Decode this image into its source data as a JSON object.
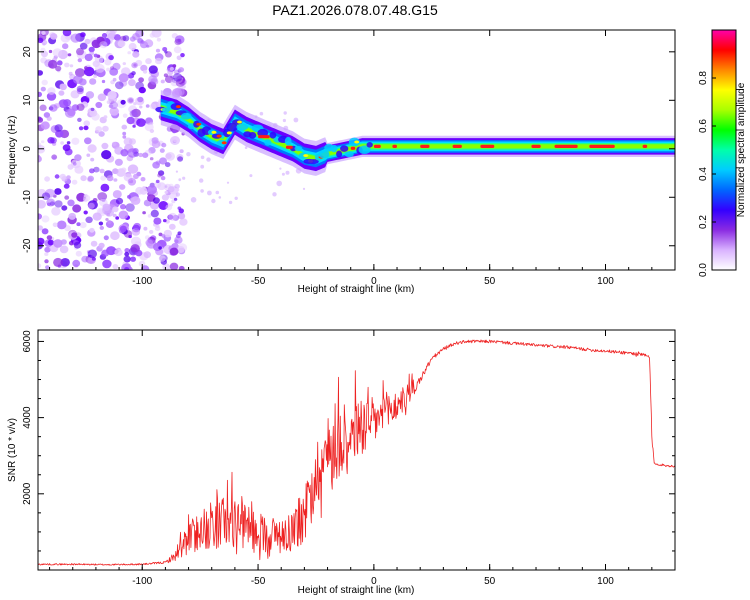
{
  "title": "PAZ1.2026.078.07.48.G15",
  "chart_data": [
    {
      "type": "heatmap",
      "title": "PAZ1.2026.078.07.48.G15",
      "xlabel": "Height of straight line (km)",
      "ylabel": "Frequency (Hz)",
      "xlim": [
        -145,
        130
      ],
      "ylim": [
        -25,
        24.5
      ],
      "xticks": [
        -100,
        -50,
        0,
        50,
        100
      ],
      "yticks": [
        -20,
        -10,
        0,
        10,
        20
      ],
      "xtick_labels": [
        "-100",
        "-50",
        "0",
        "50",
        "100"
      ],
      "ytick_labels": [
        "-20",
        "-10",
        "0",
        "10",
        "20"
      ],
      "noise_region_x": [
        -145,
        -88
      ],
      "ridge": {
        "x": [
          -92,
          -85,
          -80,
          -75,
          -70,
          -65,
          -60,
          -55,
          -50,
          -45,
          -40,
          -35,
          -30,
          -25,
          -20,
          -15,
          -10,
          -5,
          0,
          10,
          20,
          30,
          50,
          60,
          70,
          80,
          90,
          100,
          110,
          120,
          130
        ],
        "freq": [
          8.5,
          7.5,
          6,
          4,
          2.5,
          1.5,
          5.5,
          4,
          3,
          2,
          1,
          0,
          -1.5,
          -2,
          -1,
          -0.5,
          0,
          0.5,
          0.5,
          0.5,
          0.5,
          0.5,
          0.5,
          0.5,
          0.5,
          0.5,
          0.5,
          0.5,
          0.5,
          0.5,
          0.5
        ]
      },
      "colorbar": {
        "label": "Normalized spectral amplitude",
        "range": [
          0,
          1
        ],
        "ticks": [
          0.0,
          0.2,
          0.4,
          0.6,
          0.8
        ],
        "tick_labels": [
          "0.0",
          "0.2",
          "0.4",
          "0.6",
          "0.8"
        ],
        "colors": [
          "#ffffff",
          "#d9b3ff",
          "#8a2be2",
          "#3300ff",
          "#0066ff",
          "#00ccff",
          "#00ffaa",
          "#00ff00",
          "#aaff00",
          "#ffff00",
          "#ff8800",
          "#ff0000",
          "#ff00aa"
        ]
      }
    },
    {
      "type": "line",
      "xlabel": "Height of straight line (km)",
      "ylabel": "SNR (10 * v/v)",
      "xlim": [
        -145,
        130
      ],
      "ylim": [
        0,
        6300
      ],
      "xticks": [
        -100,
        -50,
        0,
        50,
        100
      ],
      "yticks": [
        2000,
        4000,
        6000
      ],
      "xtick_labels": [
        "-100",
        "-50",
        "0",
        "50",
        "100"
      ],
      "ytick_labels": [
        "2000",
        "4000",
        "6000"
      ],
      "color": "#ee2222",
      "series": [
        {
          "name": "SNR",
          "x": [
            -145,
            -130,
            -115,
            -100,
            -90,
            -85,
            -80,
            -75,
            -70,
            -65,
            -60,
            -55,
            -50,
            -45,
            -40,
            -35,
            -30,
            -25,
            -20,
            -15,
            -10,
            -5,
            0,
            5,
            10,
            15,
            20,
            25,
            30,
            35,
            40,
            45,
            50,
            55,
            60,
            65,
            70,
            75,
            80,
            85,
            90,
            95,
            100,
            105,
            110,
            115,
            119,
            120,
            121,
            125,
            130
          ],
          "base": [
            150,
            150,
            140,
            150,
            200,
            400,
            700,
            900,
            1000,
            1050,
            1050,
            950,
            850,
            800,
            800,
            900,
            1200,
            2200,
            2800,
            3100,
            3300,
            3500,
            3700,
            3950,
            4200,
            4500,
            5000,
            5550,
            5800,
            5950,
            6000,
            6000,
            6000,
            5980,
            5950,
            5930,
            5900,
            5880,
            5860,
            5840,
            5800,
            5770,
            5750,
            5720,
            5700,
            5650,
            5600,
            3500,
            2800,
            2750,
            2720
          ],
          "noise": [
            40,
            40,
            40,
            40,
            60,
            300,
            500,
            700,
            800,
            900,
            800,
            700,
            650,
            600,
            600,
            700,
            900,
            1200,
            1200,
            1200,
            1100,
            1000,
            800,
            700,
            500,
            400,
            200,
            120,
            100,
            80,
            80,
            80,
            80,
            80,
            80,
            80,
            80,
            80,
            80,
            80,
            80,
            80,
            80,
            80,
            100,
            150,
            150,
            200,
            60,
            60,
            60
          ]
        }
      ]
    }
  ]
}
